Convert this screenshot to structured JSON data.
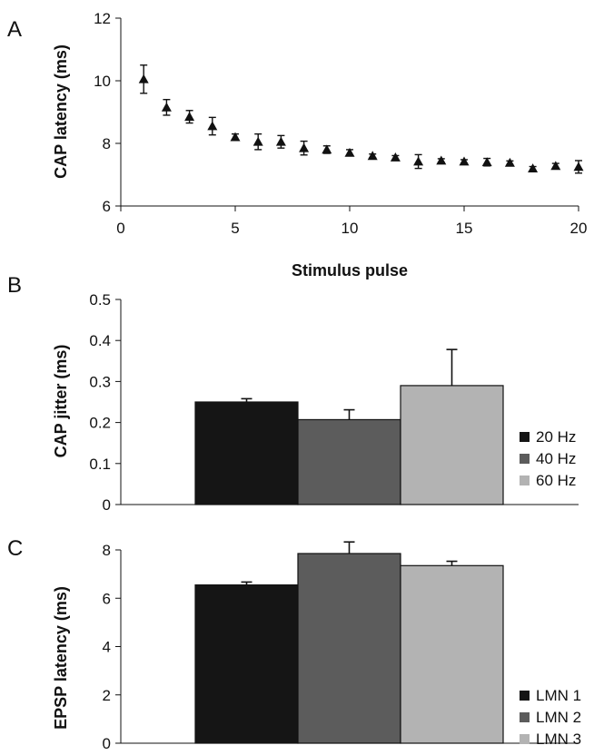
{
  "chart_data": [
    {
      "panel": "A",
      "type": "scatter",
      "ylabel": "CAP latency (ms)",
      "xlabel": "Stimulus pulse",
      "xlim": [
        0,
        20
      ],
      "ylim": [
        6,
        12
      ],
      "xticks": [
        0,
        5,
        10,
        15,
        20
      ],
      "yticks": [
        6,
        8,
        10,
        12
      ],
      "marker": "triangle",
      "color": "#111111",
      "points": [
        {
          "x": 1,
          "y": 10.05,
          "err": 0.45
        },
        {
          "x": 2,
          "y": 9.15,
          "err": 0.25
        },
        {
          "x": 3,
          "y": 8.85,
          "err": 0.2
        },
        {
          "x": 4,
          "y": 8.55,
          "err": 0.28
        },
        {
          "x": 5,
          "y": 8.2,
          "err": 0.1
        },
        {
          "x": 6,
          "y": 8.05,
          "err": 0.25
        },
        {
          "x": 7,
          "y": 8.05,
          "err": 0.2
        },
        {
          "x": 8,
          "y": 7.85,
          "err": 0.22
        },
        {
          "x": 9,
          "y": 7.8,
          "err": 0.12
        },
        {
          "x": 10,
          "y": 7.7,
          "err": 0.1
        },
        {
          "x": 11,
          "y": 7.6,
          "err": 0.06
        },
        {
          "x": 12,
          "y": 7.55,
          "err": 0.06
        },
        {
          "x": 13,
          "y": 7.42,
          "err": 0.22
        },
        {
          "x": 14,
          "y": 7.45,
          "err": 0.06
        },
        {
          "x": 15,
          "y": 7.42,
          "err": 0.06
        },
        {
          "x": 16,
          "y": 7.4,
          "err": 0.12
        },
        {
          "x": 17,
          "y": 7.38,
          "err": 0.06
        },
        {
          "x": 18,
          "y": 7.2,
          "err": 0.06
        },
        {
          "x": 19,
          "y": 7.28,
          "err": 0.08
        },
        {
          "x": 20,
          "y": 7.25,
          "err": 0.2
        }
      ]
    },
    {
      "panel": "B",
      "type": "bar",
      "ylabel": "CAP jitter (ms)",
      "ylim": [
        0,
        0.5
      ],
      "yticks": [
        0,
        0.1,
        0.2,
        0.3,
        0.4,
        0.5
      ],
      "series": [
        {
          "name": "20 Hz",
          "value": 0.25,
          "err": 0.008,
          "color": "#151515"
        },
        {
          "name": "40 Hz",
          "value": 0.207,
          "err": 0.024,
          "color": "#5c5c5c"
        },
        {
          "name": "60 Hz",
          "value": 0.29,
          "err": 0.088,
          "color": "#b3b3b3"
        }
      ]
    },
    {
      "panel": "C",
      "type": "bar",
      "ylabel": "EPSP latency (ms)",
      "ylim": [
        0,
        8
      ],
      "yticks": [
        0,
        2,
        4,
        6,
        8
      ],
      "series": [
        {
          "name": "LMN 1",
          "value": 6.55,
          "err": 0.12,
          "color": "#151515"
        },
        {
          "name": "LMN 2",
          "value": 7.85,
          "err": 0.48,
          "color": "#5c5c5c"
        },
        {
          "name": "LMN 3",
          "value": 7.35,
          "err": 0.18,
          "color": "#b3b3b3"
        }
      ]
    }
  ]
}
